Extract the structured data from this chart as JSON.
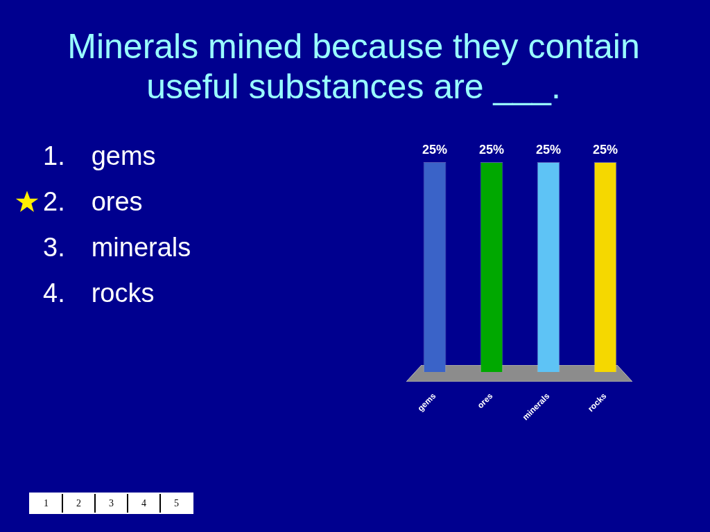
{
  "chart_data": {
    "type": "bar",
    "title": "Minerals mined because they contain useful substances are ___.",
    "categories": [
      "gems",
      "ores",
      "minerals",
      "rocks"
    ],
    "values": [
      25,
      25,
      25,
      25
    ],
    "colors": [
      "#3a63c8",
      "#00a800",
      "#5ec3f5",
      "#f5d800"
    ],
    "value_labels": [
      "25%",
      "25%",
      "25%",
      "25%"
    ],
    "annotations": [
      "1. gems",
      "2. ores",
      "3. minerals",
      "4. rocks",
      "1",
      "2",
      "3",
      "4",
      "5"
    ],
    "grid": false,
    "legend": false
  }
}
